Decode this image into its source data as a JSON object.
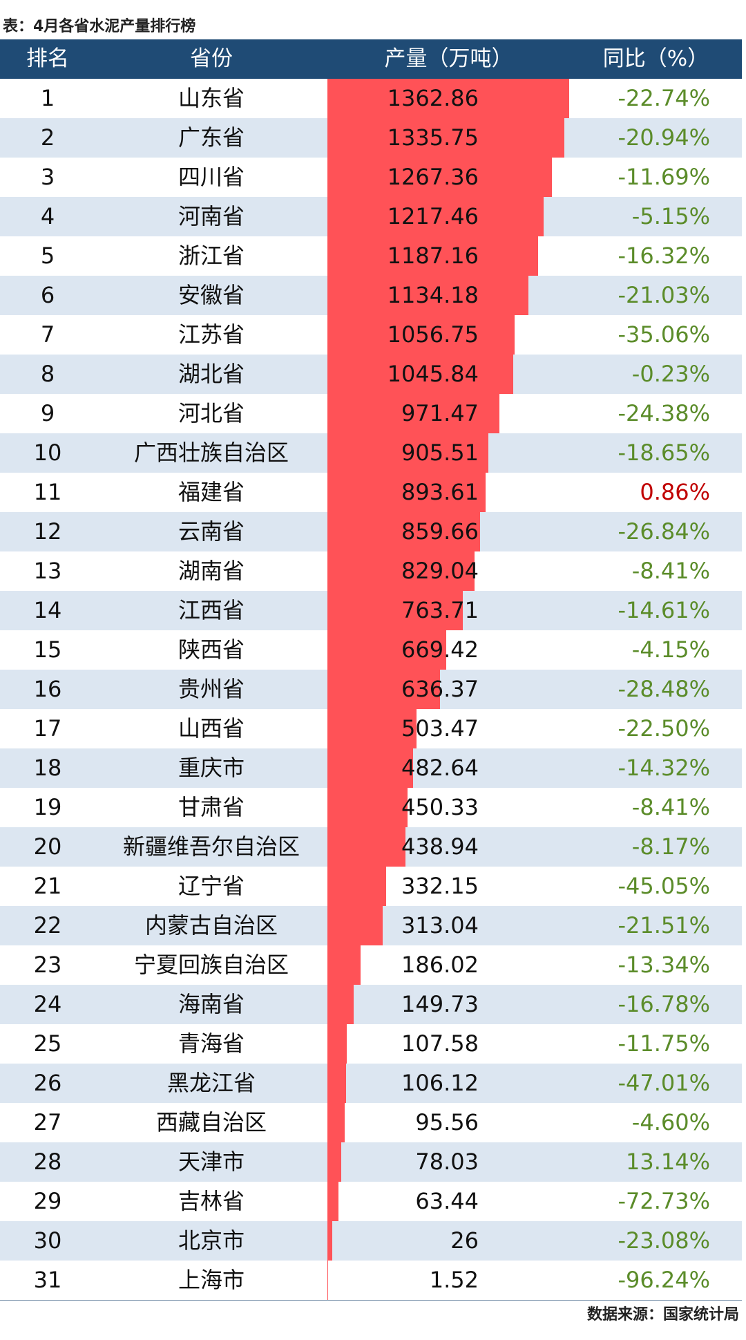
{
  "title": "表：4月各省水泥产量排行榜",
  "header": [
    "排名",
    "省份",
    "产量（万吨）",
    "同比（%）"
  ],
  "bar_color": "#ff5257",
  "rows": [
    [
      1,
      "山东省",
      1362.86,
      "-22.74%"
    ],
    [
      2,
      "广东省",
      1335.75,
      "-20.94%"
    ],
    [
      3,
      "四川省",
      1267.36,
      "-11.69%"
    ],
    [
      4,
      "河南省",
      1217.46,
      "-5.15%"
    ],
    [
      5,
      "浙江省",
      1187.16,
      "-16.32%"
    ],
    [
      6,
      "安徽省",
      1134.18,
      "-21.03%"
    ],
    [
      7,
      "江苏省",
      1056.75,
      "-35.06%"
    ],
    [
      8,
      "湖北省",
      1045.84,
      "-0.23%"
    ],
    [
      9,
      "河北省",
      971.47,
      "-24.38%"
    ],
    [
      10,
      "广西壮族自治区",
      905.51,
      "-18.65%"
    ],
    [
      11,
      "福建省",
      893.61,
      "0.86%"
    ],
    [
      12,
      "云南省",
      859.66,
      "-26.84%"
    ],
    [
      13,
      "湖南省",
      829.04,
      "-8.41%"
    ],
    [
      14,
      "江西省",
      763.71,
      "-14.61%"
    ],
    [
      15,
      "陕西省",
      669.42,
      "-4.15%"
    ],
    [
      16,
      "贵州省",
      636.37,
      "-28.48%"
    ],
    [
      17,
      "山西省",
      503.47,
      "-22.50%"
    ],
    [
      18,
      "重庆市",
      482.64,
      "-14.32%"
    ],
    [
      19,
      "甘肃省",
      450.33,
      "-8.41%"
    ],
    [
      20,
      "新疆维吾尔自治区",
      438.94,
      "-8.17%"
    ],
    [
      21,
      "辽宁省",
      332.15,
      "-45.05%"
    ],
    [
      22,
      "内蒙古自治区",
      313.04,
      "-21.51%"
    ],
    [
      23,
      "宁夏回族自治区",
      186.02,
      "-13.34%"
    ],
    [
      24,
      "海南省",
      149.73,
      "-16.78%"
    ],
    [
      25,
      "青海省",
      107.58,
      "-11.75%"
    ],
    [
      26,
      "黑龙江省",
      106.12,
      "-47.01%"
    ],
    [
      27,
      "西藏自治区",
      95.56,
      "-4.60%"
    ],
    [
      28,
      "天津市",
      78.03,
      "13.14%"
    ],
    [
      29,
      "吉林省",
      63.44,
      "-72.73%"
    ],
    [
      30,
      "北京市",
      26,
      "-23.08%"
    ],
    [
      31,
      "上海市",
      1.52,
      "-96.24%"
    ]
  ],
  "yoy_colors": [
    "#5b8c2a",
    "#5b8c2a",
    "#5b8c2a",
    "#5b8c2a",
    "#5b8c2a",
    "#5b8c2a",
    "#5b8c2a",
    "#5b8c2a",
    "#5b8c2a",
    "#5b8c2a",
    "#c00000",
    "#5b8c2a",
    "#5b8c2a",
    "#5b8c2a",
    "#5b8c2a",
    "#5b8c2a",
    "#5b8c2a",
    "#5b8c2a",
    "#5b8c2a",
    "#5b8c2a",
    "#5b8c2a",
    "#5b8c2a",
    "#5b8c2a",
    "#5b8c2a",
    "#5b8c2a",
    "#5b8c2a",
    "#5b8c2a",
    "#5b8c2a",
    "#5b8c2a",
    "#5b8c2a",
    "#5b8c2a"
  ],
  "source": "数据来源：国家统计局"
}
